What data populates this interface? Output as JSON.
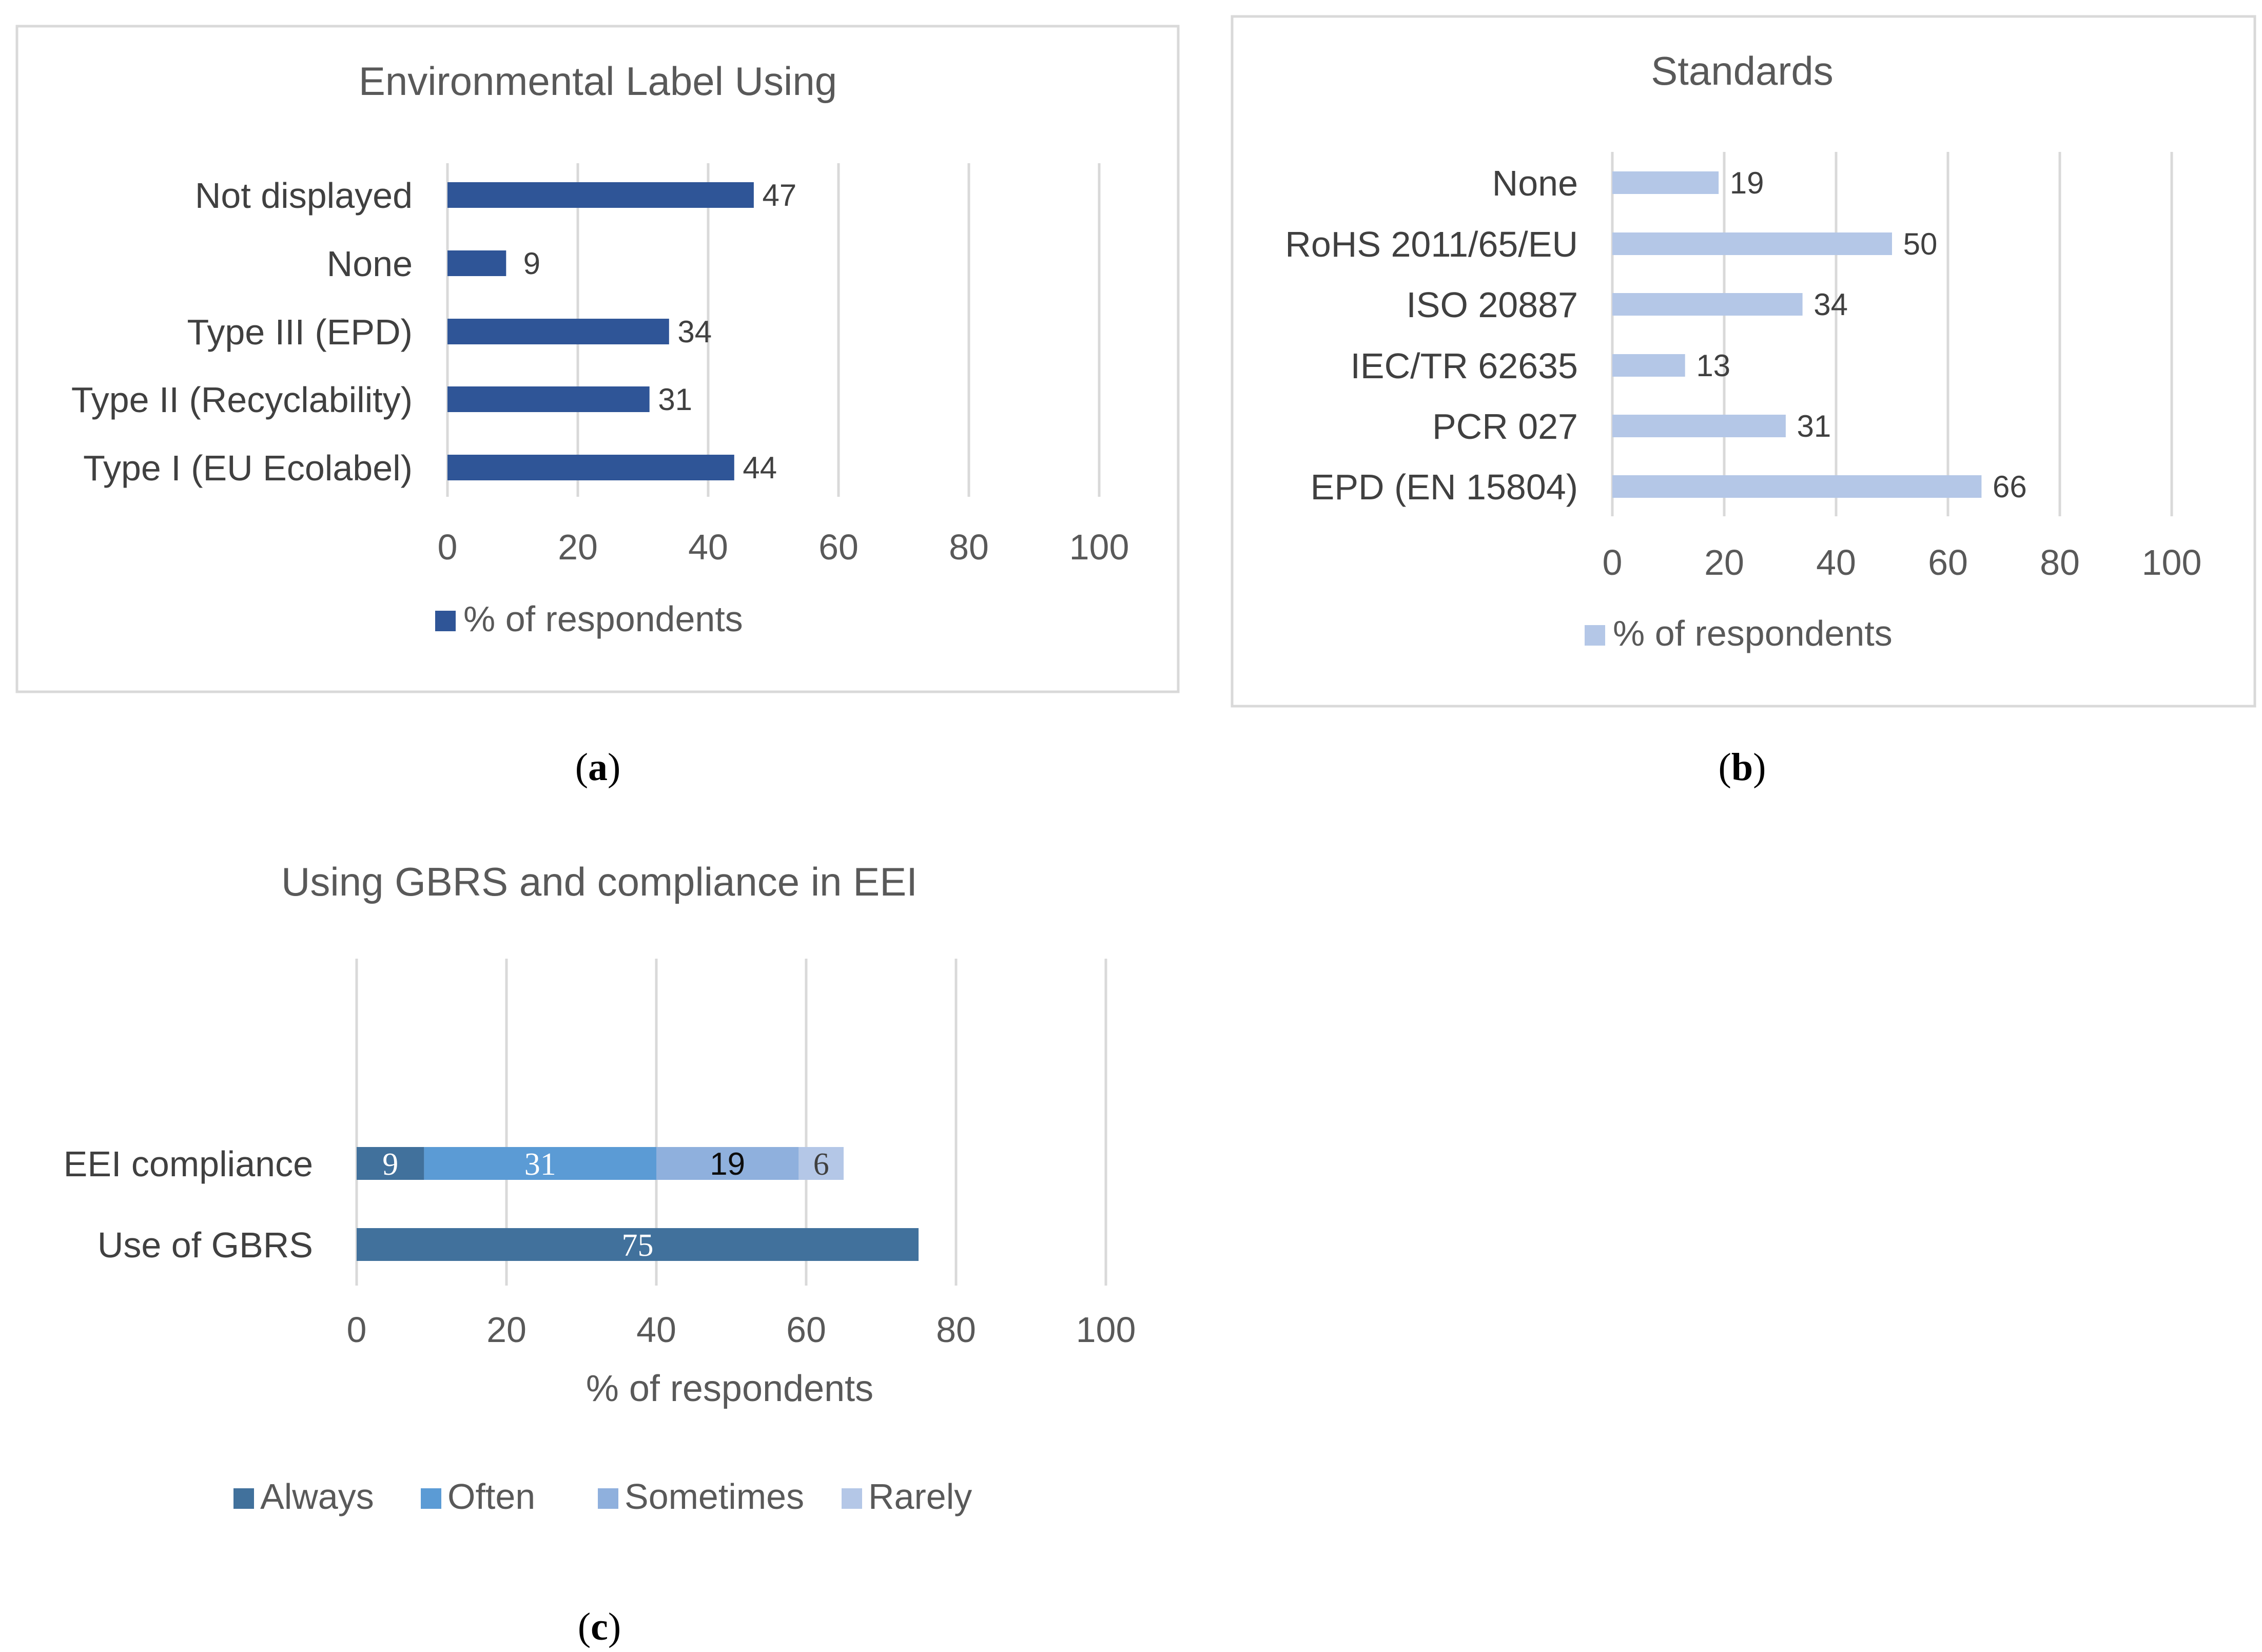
{
  "chart_data": [
    {
      "id": "a",
      "type": "bar",
      "orientation": "horizontal",
      "title": "Environmental Label Using",
      "categories": [
        "Not displayed",
        "None",
        "Type III (EPD)",
        "Type II (Recyclability)",
        "Type I (EU Ecolabel)"
      ],
      "series": [
        {
          "name": "% of respondents",
          "values": [
            47,
            9,
            34,
            31,
            44
          ],
          "color": "#2f5597"
        }
      ],
      "xlim": [
        0,
        100
      ],
      "x_ticks": [
        "0",
        "20",
        "40",
        "60",
        "80",
        "100"
      ],
      "grid": true,
      "legend": "bottom",
      "caption": "a"
    },
    {
      "id": "b",
      "type": "bar",
      "orientation": "horizontal",
      "title": "Standards",
      "categories": [
        "None",
        "RoHS 2011/65/EU",
        "ISO 20887",
        "IEC/TR 62635",
        "PCR 027",
        "EPD (EN 15804)"
      ],
      "series": [
        {
          "name": "% of respondents",
          "values": [
            19,
            50,
            34,
            13,
            31,
            66
          ],
          "color": "#b4c7e7"
        }
      ],
      "xlim": [
        0,
        100
      ],
      "x_ticks": [
        "0",
        "20",
        "40",
        "60",
        "80",
        "100"
      ],
      "grid": true,
      "legend": "bottom",
      "caption": "b"
    },
    {
      "id": "c",
      "type": "bar",
      "orientation": "horizontal",
      "stacked": true,
      "title": "Using GBRS and compliance in EEI",
      "categories": [
        "EEI compliance",
        "Use of GBRS"
      ],
      "series": [
        {
          "name": "Always",
          "values": [
            9,
            75
          ],
          "color": "#41719c"
        },
        {
          "name": "Often",
          "values": [
            31,
            0
          ],
          "color": "#5b9bd5"
        },
        {
          "name": "Sometimes",
          "values": [
            19,
            0
          ],
          "color": "#8fb0dd"
        },
        {
          "name": "Rarely",
          "values": [
            6,
            0
          ],
          "color": "#b4c7e7"
        }
      ],
      "xlim": [
        0,
        100
      ],
      "x_ticks": [
        "0",
        "20",
        "40",
        "60",
        "80",
        "100"
      ],
      "xlabel": "% of respondents",
      "grid": true,
      "legend": "bottom",
      "caption": "c"
    }
  ]
}
